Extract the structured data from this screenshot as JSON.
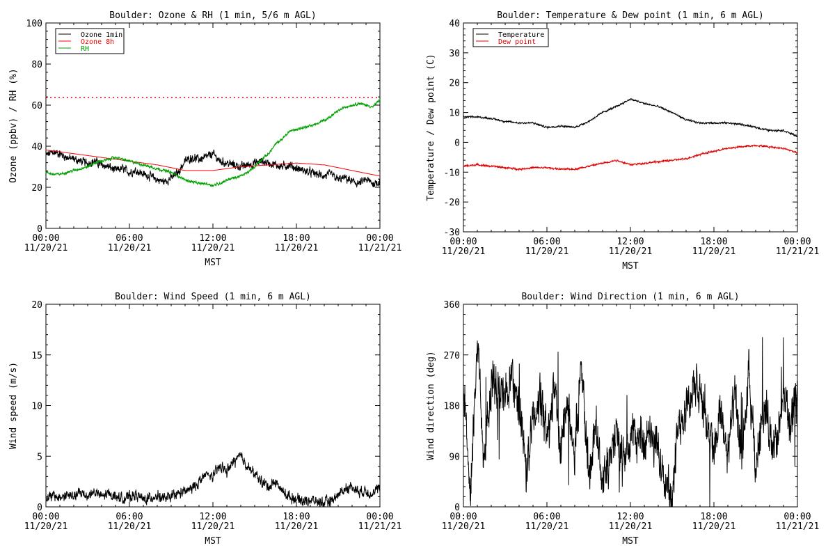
{
  "chart_data": [
    {
      "type": "line",
      "title": "Boulder: Ozone & RH (1 min, 5/6 m AGL)",
      "xlabel": "MST",
      "ylabel": "Ozone (ppbv) / RH (%)",
      "ylim": [
        0,
        110
      ],
      "yticks": [
        "0",
        "20",
        "40",
        "60",
        "80",
        "100"
      ],
      "xticks": [
        "00:00\n11/20/21",
        "06:00\n11/20/21",
        "12:00\n11/20/21",
        "18:00\n11/20/21",
        "00:00\n11/21/21"
      ],
      "legend": "top-left",
      "x": [
        0,
        2,
        4,
        6,
        8,
        10,
        12,
        14,
        16,
        18,
        20,
        22,
        24
      ],
      "series": [
        {
          "name": "Ozone 1min",
          "color": "#000000",
          "x": [
            0,
            0.5,
            1,
            1.5,
            2,
            2.5,
            3,
            3.5,
            4,
            4.5,
            5,
            5.5,
            6,
            6.5,
            7,
            7.5,
            8,
            8.5,
            9,
            9.5,
            10,
            10.5,
            11,
            11.5,
            12,
            12.5,
            13,
            13.5,
            14,
            14.5,
            15,
            15.5,
            16,
            16.5,
            17,
            17.5,
            18,
            18.5,
            19,
            19.5,
            20,
            20.5,
            21,
            21.5,
            22,
            22.5,
            23,
            23.5,
            24
          ],
          "values": [
            39,
            41,
            40,
            38,
            37,
            36,
            35,
            36,
            34,
            33,
            31,
            32,
            30,
            31,
            29,
            28,
            26,
            25,
            27,
            30,
            36,
            38,
            37,
            38,
            40,
            36,
            35,
            34,
            33,
            34,
            35,
            36,
            35,
            34,
            33,
            34,
            32,
            31,
            30,
            29,
            28,
            29,
            26,
            27,
            25,
            24,
            26,
            24,
            25
          ]
        },
        {
          "name": "Ozone 8h",
          "color": "#ff0000",
          "x": [
            0,
            2,
            4,
            6,
            8,
            10,
            12,
            14,
            16,
            18,
            20,
            22,
            24
          ],
          "values": [
            42,
            40,
            38,
            36,
            34,
            31,
            31,
            33,
            34,
            35,
            34,
            31,
            28
          ]
        },
        {
          "name": "RH",
          "color": "#00a000",
          "x": [
            0,
            0.5,
            1,
            1.5,
            2,
            2.5,
            3,
            3.5,
            4,
            4.5,
            5,
            5.5,
            6,
            6.5,
            7,
            7.5,
            8,
            8.5,
            9,
            9.5,
            10,
            10.5,
            11,
            11.5,
            12,
            12.5,
            13,
            13.5,
            14,
            14.5,
            15,
            15.5,
            16,
            16.5,
            17,
            17.5,
            18,
            18.5,
            19,
            19.5,
            20,
            20.5,
            21,
            21.5,
            22,
            22.5,
            23,
            23.5,
            24
          ],
          "values": [
            30,
            29,
            29,
            30,
            31,
            32,
            33,
            35,
            36,
            37,
            38,
            37,
            36,
            35,
            34,
            33,
            32,
            31,
            30,
            28,
            26,
            25,
            24,
            24,
            23,
            24,
            26,
            27,
            28,
            30,
            33,
            37,
            40,
            45,
            48,
            52,
            53,
            54,
            55,
            56,
            58,
            60,
            63,
            65,
            66,
            67,
            66,
            65,
            69
          ]
        }
      ],
      "reference_line": {
        "value": 70,
        "color": "#ff0000",
        "style": "dotted"
      }
    },
    {
      "type": "line",
      "title": "Boulder: Temperature & Dew point (1 min, 6 m AGL)",
      "xlabel": "MST",
      "ylabel": "Temperature / Dew point (C)",
      "ylim": [
        -30,
        40
      ],
      "yticks": [
        "-30",
        "-20",
        "-10",
        "0",
        "10",
        "20",
        "30",
        "40"
      ],
      "xticks": [
        "00:00\n11/20/21",
        "06:00\n11/20/21",
        "12:00\n11/20/21",
        "18:00\n11/20/21",
        "00:00\n11/21/21"
      ],
      "legend": "top-left",
      "series": [
        {
          "name": "Temperature",
          "color": "#000000",
          "x": [
            0,
            1,
            2,
            3,
            4,
            5,
            6,
            7,
            8,
            9,
            10,
            11,
            12,
            13,
            14,
            15,
            16,
            17,
            18,
            19,
            20,
            21,
            22,
            23,
            24
          ],
          "values": [
            8.5,
            8.5,
            8,
            7,
            6.5,
            6.5,
            5,
            5.5,
            5,
            7,
            10,
            12,
            14.5,
            13,
            12,
            10,
            7.5,
            6.5,
            6.5,
            6.5,
            6,
            5,
            4,
            4,
            2
          ]
        },
        {
          "name": "Dew point",
          "color": "#dd0000",
          "x": [
            0,
            1,
            2,
            3,
            4,
            5,
            6,
            7,
            8,
            9,
            10,
            11,
            12,
            13,
            14,
            15,
            16,
            17,
            18,
            19,
            20,
            21,
            22,
            23,
            24
          ],
          "values": [
            -8,
            -7.5,
            -8,
            -8.5,
            -9,
            -8.5,
            -8.5,
            -9,
            -9,
            -8,
            -7,
            -6,
            -7.5,
            -7,
            -6.5,
            -6,
            -5.5,
            -4,
            -3,
            -2,
            -1.5,
            -1,
            -1.5,
            -2,
            -3.5
          ]
        }
      ]
    },
    {
      "type": "line",
      "title": "Boulder: Wind Speed (1 min, 6 m AGL)",
      "xlabel": "MST",
      "ylabel": "Wind speed (m/s)",
      "ylim": [
        0,
        20
      ],
      "yticks": [
        "0",
        "5",
        "10",
        "15",
        "20"
      ],
      "xticks": [
        "00:00\n11/20/21",
        "06:00\n11/20/21",
        "12:00\n11/20/21",
        "18:00\n11/20/21",
        "00:00\n11/21/21"
      ],
      "series": [
        {
          "name": "",
          "color": "#000000",
          "x": [
            0,
            0.5,
            1,
            1.5,
            2,
            2.5,
            3,
            3.5,
            4,
            4.5,
            5,
            5.5,
            6,
            6.5,
            7,
            7.5,
            8,
            8.5,
            9,
            9.5,
            10,
            10.5,
            11,
            11.5,
            12,
            12.5,
            13,
            13.5,
            14,
            14.5,
            15,
            15.5,
            16,
            16.5,
            17,
            17.5,
            18,
            18.5,
            19,
            19.5,
            20,
            20.5,
            21,
            21.5,
            22,
            22.5,
            23,
            23.5,
            24
          ],
          "values": [
            0.8,
            1.1,
            0.9,
            1.2,
            1.0,
            1.4,
            1.1,
            1.5,
            1.0,
            1.3,
            1.1,
            0.8,
            1.0,
            1.2,
            0.7,
            0.9,
            1.1,
            0.8,
            1.0,
            1.3,
            1.5,
            1.8,
            2.5,
            3.2,
            3.0,
            4.0,
            3.5,
            4.5,
            5.0,
            4.0,
            3.2,
            2.5,
            2.0,
            2.5,
            1.5,
            1.0,
            0.8,
            0.6,
            0.7,
            0.5,
            0.4,
            0.6,
            1.2,
            1.8,
            2.0,
            1.5,
            1.6,
            1.2,
            2.0
          ]
        }
      ]
    },
    {
      "type": "line",
      "title": "Boulder: Wind Direction (1 min, 6 m AGL)",
      "xlabel": "MST",
      "ylabel": "Wind direction (deg)",
      "ylim": [
        0,
        360
      ],
      "yticks": [
        "0",
        "90",
        "180",
        "270",
        "360"
      ],
      "xticks": [
        "00:00\n11/20/21",
        "06:00\n11/20/21",
        "12:00\n11/20/21",
        "18:00\n11/20/21",
        "00:00\n11/21/21"
      ],
      "series": [
        {
          "name": "",
          "color": "#000000",
          "x": [
            0,
            0.5,
            1,
            1.5,
            2,
            2.5,
            3,
            3.5,
            4,
            4.5,
            5,
            5.5,
            6,
            6.5,
            7,
            7.5,
            8,
            8.5,
            9,
            9.5,
            10,
            10.5,
            11,
            11.5,
            12,
            12.5,
            13,
            13.5,
            14,
            14.5,
            15,
            15.5,
            16,
            16.5,
            17,
            17.5,
            18,
            18.5,
            19,
            19.5,
            20,
            20.5,
            21,
            21.5,
            22,
            22.5,
            23,
            23.5,
            24
          ],
          "values": [
            230,
            20,
            300,
            80,
            220,
            210,
            190,
            240,
            180,
            60,
            150,
            200,
            120,
            210,
            110,
            180,
            100,
            250,
            60,
            150,
            40,
            100,
            120,
            80,
            130,
            120,
            125,
            115,
            100,
            60,
            20,
            150,
            180,
            210,
            200,
            150,
            110,
            170,
            90,
            200,
            80,
            230,
            60,
            180,
            140,
            100,
            200,
            150,
            180
          ]
        }
      ]
    }
  ]
}
